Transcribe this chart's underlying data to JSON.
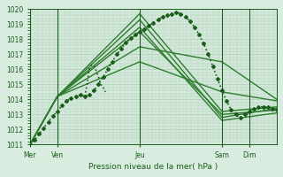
{
  "title": "",
  "xlabel": "Pression niveau de la mer( hPa )",
  "ylabel": "",
  "background_color": "#d8ede0",
  "plot_bg_color": "#d8ede0",
  "grid_color": "#b0ccb8",
  "line_color_dark": "#1a5c1a",
  "line_color_medium": "#2e7d2e",
  "ylim": [
    1011,
    1020
  ],
  "yticks": [
    1011,
    1012,
    1013,
    1014,
    1015,
    1016,
    1017,
    1018,
    1019,
    1020
  ],
  "day_labels": [
    "Mer",
    "Ven",
    "Jeu",
    "Sam",
    "Dim"
  ],
  "day_positions": [
    0,
    12,
    48,
    84,
    96
  ],
  "xlim": [
    0,
    108
  ],
  "num_points": 109,
  "series": [
    {
      "x": [
        0,
        2,
        4,
        6,
        8,
        10,
        12,
        14,
        16,
        18,
        20,
        22,
        24,
        26,
        28,
        30,
        32,
        34,
        36,
        38,
        40,
        42,
        44,
        46,
        48,
        50,
        52,
        54,
        56,
        58,
        60,
        62,
        64,
        66,
        68,
        70,
        72,
        74,
        76,
        78,
        80,
        82,
        84,
        86,
        88,
        90,
        92,
        94,
        96,
        98,
        100,
        102,
        104,
        106,
        108
      ],
      "y": [
        1011.0,
        1011.3,
        1011.7,
        1012.1,
        1012.5,
        1012.9,
        1013.2,
        1013.6,
        1013.9,
        1014.1,
        1014.2,
        1014.3,
        1014.2,
        1014.3,
        1014.6,
        1015.0,
        1015.5,
        1016.0,
        1016.5,
        1017.0,
        1017.4,
        1017.8,
        1018.1,
        1018.3,
        1018.5,
        1018.7,
        1018.9,
        1019.1,
        1019.3,
        1019.5,
        1019.6,
        1019.7,
        1019.8,
        1019.7,
        1019.5,
        1019.2,
        1018.8,
        1018.3,
        1017.7,
        1017.0,
        1016.2,
        1015.4,
        1014.6,
        1013.9,
        1013.3,
        1013.0,
        1012.8,
        1013.0,
        1013.2,
        1013.4,
        1013.5,
        1013.5,
        1013.5,
        1013.4,
        1013.3
      ],
      "style": "dotted",
      "linewidth": 1.2,
      "marker": "D",
      "markersize": 2,
      "color": "#1a5c1a"
    },
    {
      "x": [
        0,
        12,
        48,
        84,
        108
      ],
      "y": [
        1011.0,
        1014.2,
        1018.5,
        1013.0,
        1013.3
      ],
      "style": "solid",
      "linewidth": 1.0,
      "color": "#2e7d2e"
    },
    {
      "x": [
        0,
        12,
        48,
        84,
        108
      ],
      "y": [
        1011.0,
        1014.2,
        1019.7,
        1013.2,
        1013.5
      ],
      "style": "solid",
      "linewidth": 1.0,
      "color": "#2e7d2e"
    },
    {
      "x": [
        0,
        12,
        48,
        84,
        108
      ],
      "y": [
        1011.0,
        1014.2,
        1019.3,
        1012.8,
        1013.4
      ],
      "style": "solid",
      "linewidth": 1.0,
      "color": "#2e7d2e"
    },
    {
      "x": [
        0,
        12,
        48,
        84,
        108
      ],
      "y": [
        1011.0,
        1014.2,
        1018.8,
        1012.6,
        1013.1
      ],
      "style": "solid",
      "linewidth": 1.0,
      "color": "#2e7d2e"
    },
    {
      "x": [
        0,
        12,
        48,
        84,
        108
      ],
      "y": [
        1011.0,
        1014.2,
        1016.5,
        1014.5,
        1013.9
      ],
      "style": "solid",
      "linewidth": 1.0,
      "color": "#2e7d2e"
    },
    {
      "x": [
        0,
        12,
        48,
        84,
        108
      ],
      "y": [
        1011.0,
        1014.2,
        1017.5,
        1016.5,
        1014.0
      ],
      "style": "solid",
      "linewidth": 1.0,
      "color": "#2e7d2e"
    }
  ],
  "spike_series": {
    "x": [
      24,
      25,
      26,
      27,
      28,
      29,
      30,
      31,
      32,
      33
    ],
    "y": [
      1014.2,
      1015.0,
      1016.1,
      1016.3,
      1016.2,
      1015.9,
      1015.5,
      1015.0,
      1014.8,
      1014.5
    ],
    "color": "#1a5c1a",
    "linewidth": 1.2
  }
}
